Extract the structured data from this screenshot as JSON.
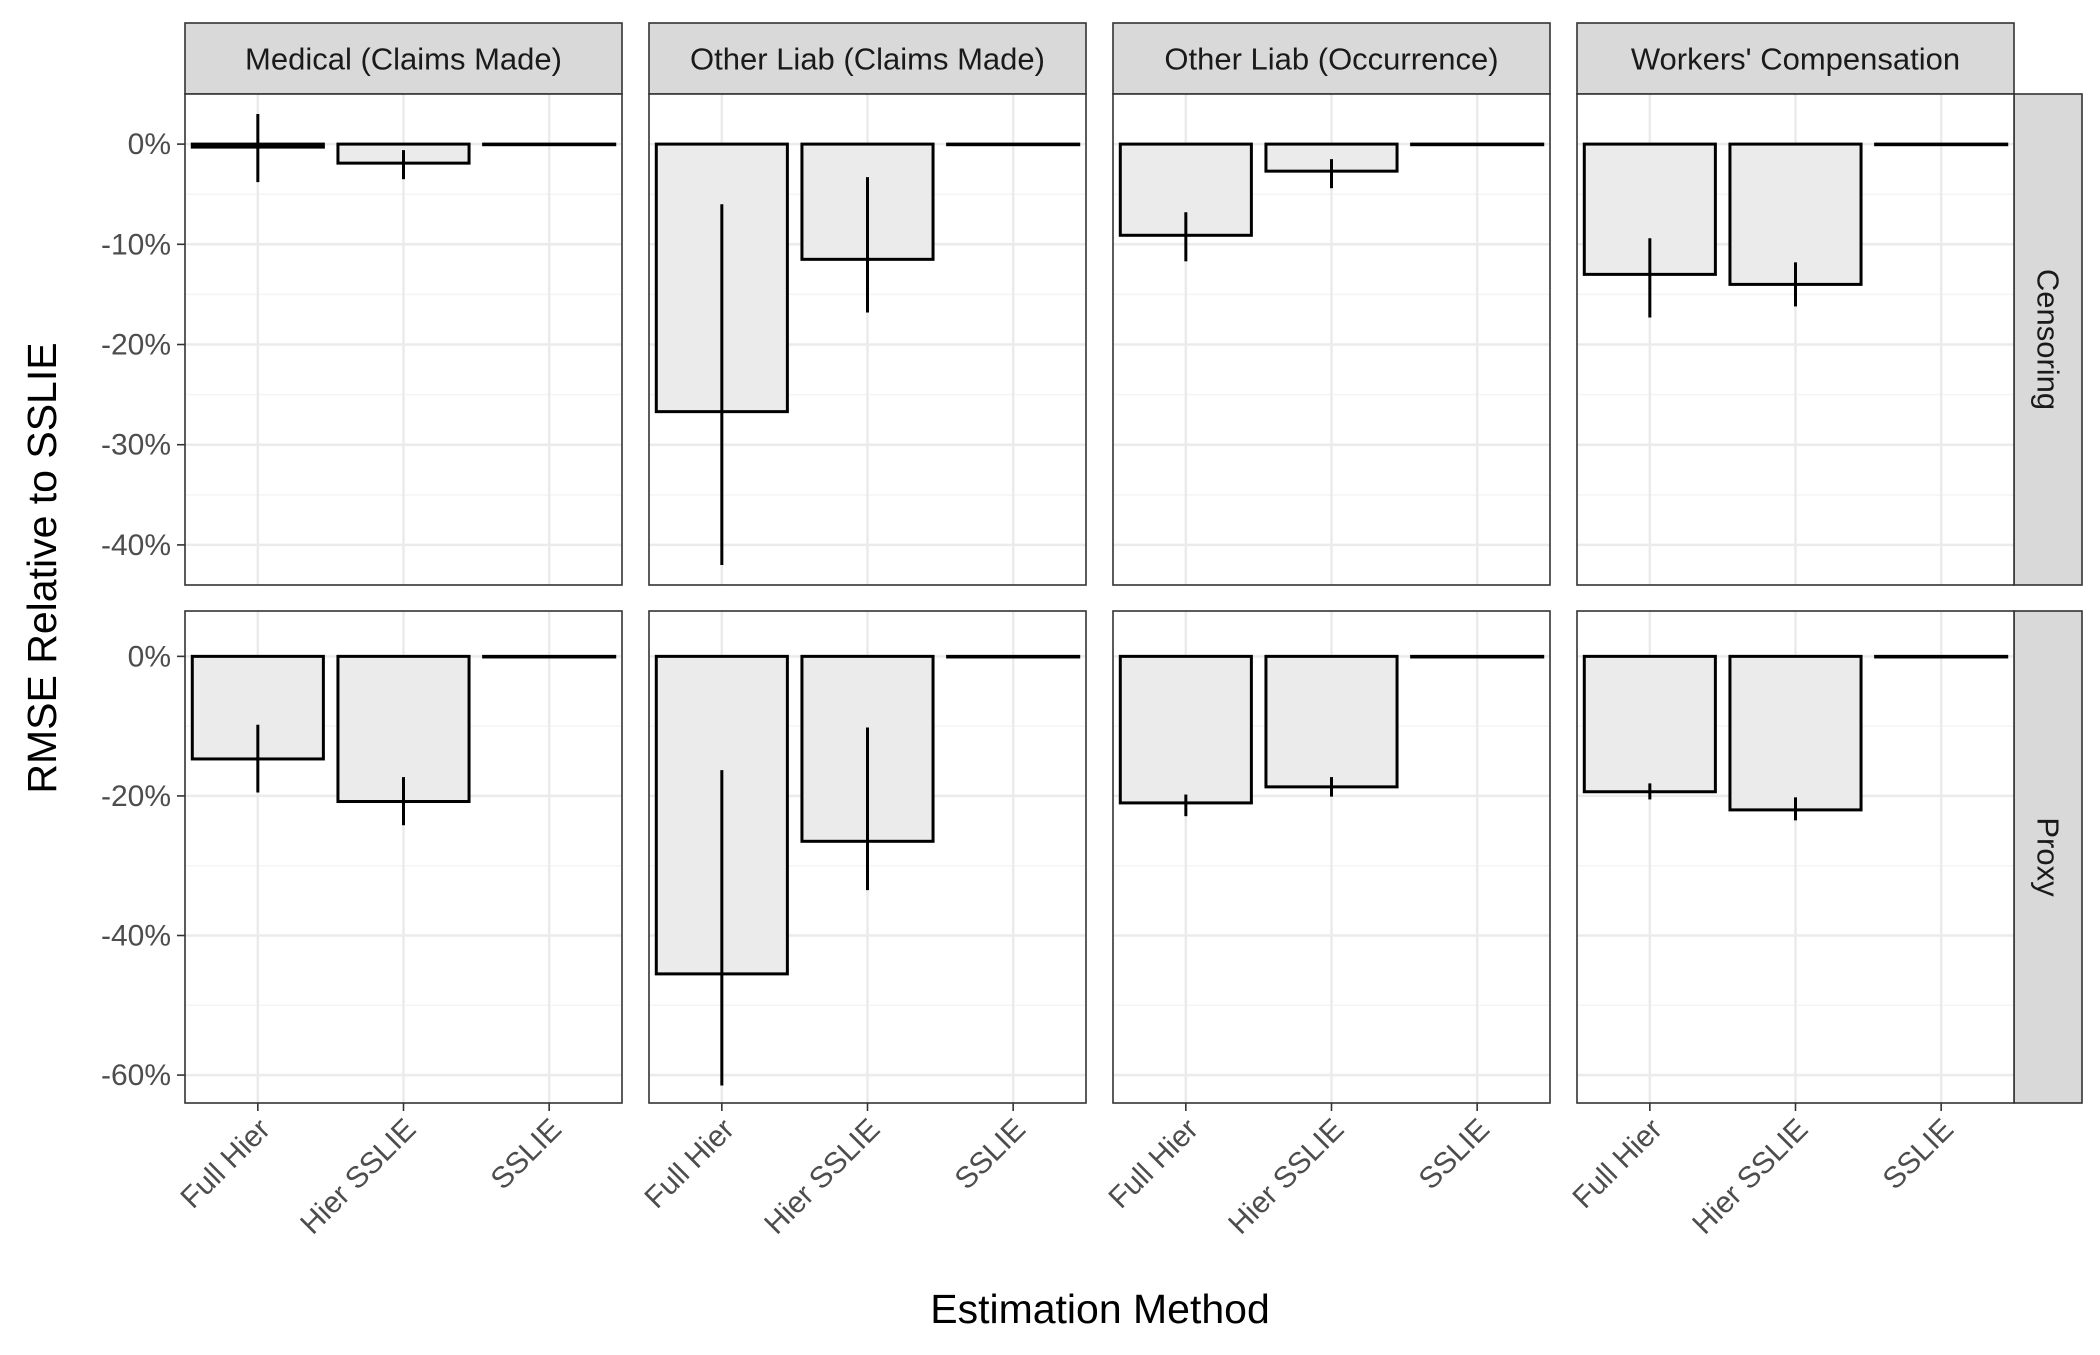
{
  "chart_data": {
    "type": "bar",
    "xlabel": "Estimation Method",
    "ylabel": "RMSE Relative to SSLIE",
    "categories": [
      "Full Hier",
      "Hier SSLIE",
      "SSLIE"
    ],
    "column_facets": [
      "Medical (Claims Made)",
      "Other Liab (Claims Made)",
      "Other Liab (Occurrence)",
      "Workers' Compensation"
    ],
    "row_facets": [
      {
        "name": "Censoring",
        "ylim": [
          -44,
          5
        ],
        "ticks": [
          0,
          -10,
          -20,
          -30,
          -40
        ],
        "tick_labels": [
          "0%",
          "-10%",
          "-20%",
          "-30%",
          "-40%"
        ]
      },
      {
        "name": "Proxy",
        "ylim": [
          -64,
          6.5
        ],
        "ticks": [
          0,
          -20,
          -40,
          -60
        ],
        "tick_labels": [
          "0%",
          "-20%",
          "-40%",
          "-60%"
        ]
      }
    ],
    "grid": true,
    "legend": "none",
    "panels": [
      {
        "row": "Censoring",
        "col": "Medical (Claims Made)",
        "values": [
          -0.3,
          -1.9,
          0
        ],
        "error_low": [
          -3.8,
          -3.5,
          0
        ],
        "error_high": [
          3.0,
          -0.6,
          0
        ]
      },
      {
        "row": "Censoring",
        "col": "Other Liab (Claims Made)",
        "values": [
          -26.7,
          -11.5,
          0
        ],
        "error_low": [
          -42.0,
          -16.8,
          0
        ],
        "error_high": [
          -6.0,
          -3.3,
          0
        ]
      },
      {
        "row": "Censoring",
        "col": "Other Liab (Occurrence)",
        "values": [
          -9.1,
          -2.7,
          0
        ],
        "error_low": [
          -11.7,
          -4.4,
          0
        ],
        "error_high": [
          -6.8,
          -1.5,
          0
        ]
      },
      {
        "row": "Censoring",
        "col": "Workers' Compensation",
        "values": [
          -13.0,
          -14.0,
          0
        ],
        "error_low": [
          -17.3,
          -16.2,
          0
        ],
        "error_high": [
          -9.4,
          -11.8,
          0
        ]
      },
      {
        "row": "Proxy",
        "col": "Medical (Claims Made)",
        "values": [
          -14.7,
          -20.8,
          0
        ],
        "error_low": [
          -19.5,
          -24.2,
          0
        ],
        "error_high": [
          -9.8,
          -17.3,
          0
        ]
      },
      {
        "row": "Proxy",
        "col": "Other Liab (Claims Made)",
        "values": [
          -45.5,
          -26.5,
          0
        ],
        "error_low": [
          -61.5,
          -33.5,
          0
        ],
        "error_high": [
          -16.3,
          -10.2,
          0
        ]
      },
      {
        "row": "Proxy",
        "col": "Other Liab (Occurrence)",
        "values": [
          -21.0,
          -18.7,
          0
        ],
        "error_low": [
          -22.9,
          -20.1,
          0
        ],
        "error_high": [
          -19.8,
          -17.3,
          0
        ]
      },
      {
        "row": "Proxy",
        "col": "Workers' Compensation",
        "values": [
          -19.4,
          -22.0,
          0
        ],
        "error_low": [
          -20.5,
          -23.5,
          0
        ],
        "error_high": [
          -18.2,
          -20.2,
          0
        ]
      }
    ],
    "colors": {
      "bar_fill": "#ebebeb",
      "bar_stroke": "#000000",
      "strip_fill": "#d9d9d9",
      "grid_major": "#ebebeb",
      "grid_minor": "#f4f4f4",
      "panel_border": "#333333"
    }
  }
}
